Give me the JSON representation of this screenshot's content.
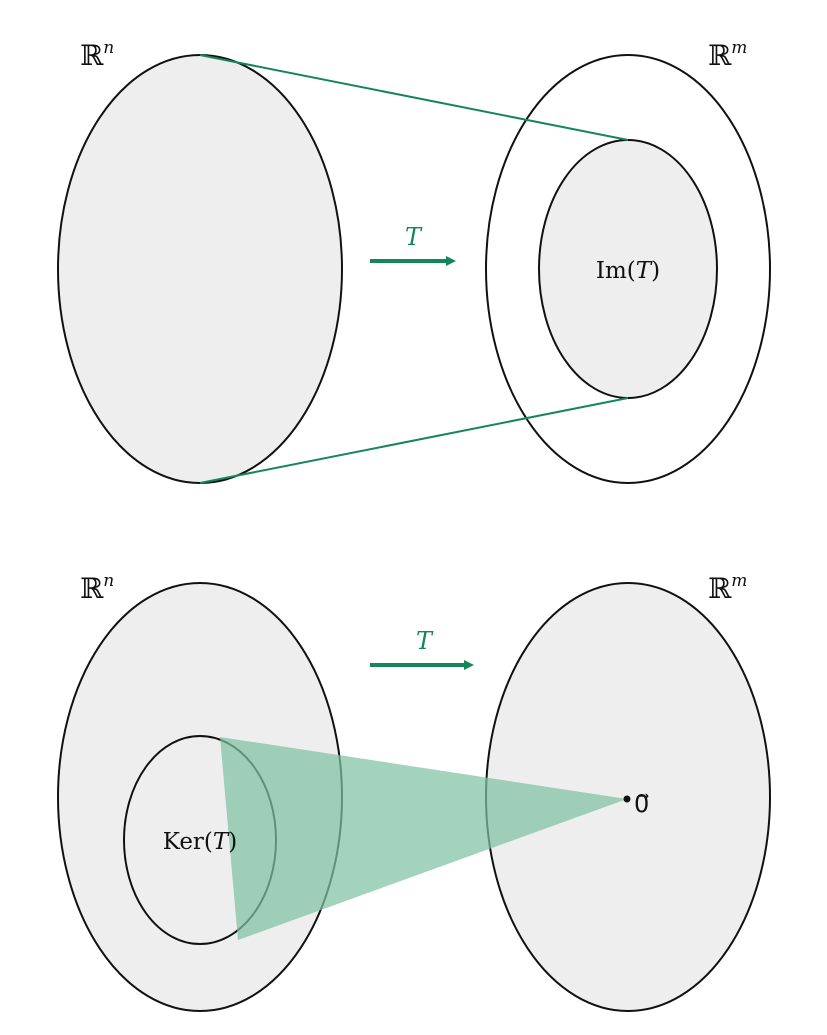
{
  "colors": {
    "fill_gray": "#eeeeee",
    "stroke": "#111111",
    "accent_green": "#14865a",
    "cone_green": "#7fc2a3"
  },
  "top": {
    "domain_label": {
      "base": "ℝ",
      "sup": "n"
    },
    "codomain_label": {
      "base": "ℝ",
      "sup": "m"
    },
    "arrow_label": "T",
    "image_label": {
      "prefix": "Im(",
      "var": "T",
      "suffix": ")"
    }
  },
  "bottom": {
    "domain_label": {
      "base": "ℝ",
      "sup": "n"
    },
    "codomain_label": {
      "base": "ℝ",
      "sup": "m"
    },
    "arrow_label": "T",
    "kernel_label": {
      "prefix": "Ker(",
      "var": "T",
      "suffix": ")"
    },
    "zero_label": "0⃗"
  }
}
